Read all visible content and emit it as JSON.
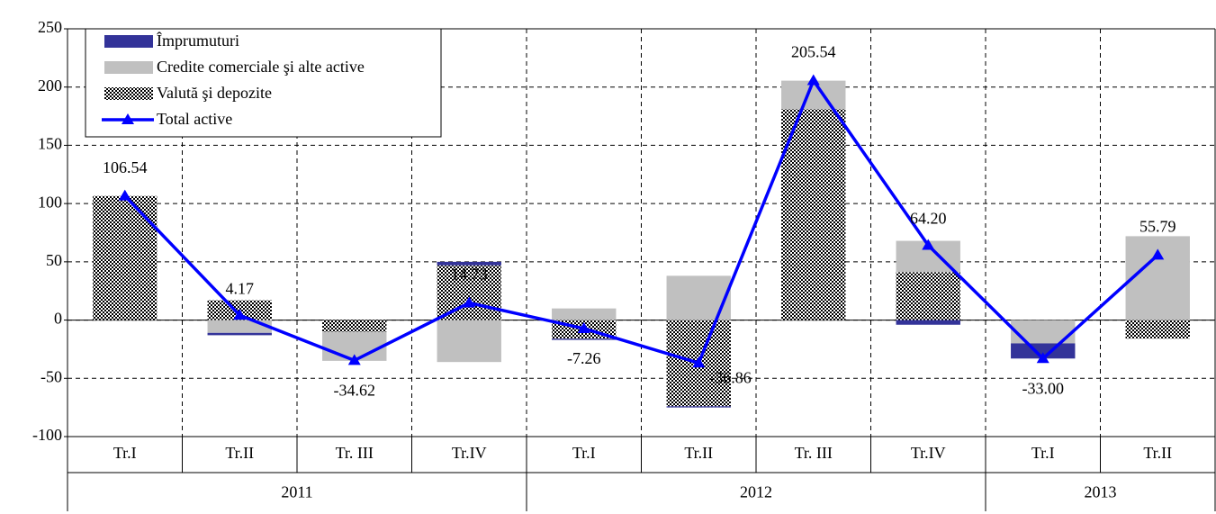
{
  "chart_data": {
    "type": "bar",
    "categories": [
      "Tr.I",
      "Tr.II",
      "Tr. III",
      "Tr.IV",
      "Tr.I",
      "Tr.II",
      "Tr. III",
      "Tr.IV",
      "Tr.I",
      "Tr.II"
    ],
    "groups": [
      {
        "label": "2011",
        "count": 4
      },
      {
        "label": "2012",
        "count": 4
      },
      {
        "label": "2013",
        "count": 2
      }
    ],
    "series": [
      {
        "name": "Împrumuturi",
        "color": "#333399",
        "fill": "solid",
        "values": [
          0,
          -2,
          0,
          3,
          -1,
          -1,
          0,
          -4,
          -13,
          0
        ]
      },
      {
        "name": "Credite comerciale şi alte active",
        "color": "#c0c0c0",
        "fill": "solid",
        "values": [
          0,
          -11,
          -25,
          -36,
          10,
          38,
          24.5,
          27,
          -20,
          72
        ]
      },
      {
        "name": "Valută şi depozite",
        "color": "#000000",
        "fill": "checker",
        "values": [
          106.5,
          17,
          -10,
          47,
          -16,
          -74,
          181,
          41,
          0,
          -16
        ]
      },
      {
        "name": "Total active",
        "color": "#0000ff",
        "type": "line",
        "values": [
          106.54,
          4.17,
          -34.62,
          14.73,
          -7.26,
          -36.86,
          205.54,
          64.2,
          -33,
          55.79
        ],
        "value_labels": [
          "106.54",
          "4.17",
          "-34.62",
          "14.73",
          "-7.26",
          "-36.86",
          "205.54",
          "64.20",
          "-33.00",
          "55.79"
        ]
      }
    ],
    "stack_order": [
      2,
      1,
      0
    ],
    "ylim": [
      -100,
      250
    ],
    "yticks": [
      -100,
      -50,
      0,
      50,
      100,
      150,
      200,
      250
    ],
    "grid": true
  }
}
